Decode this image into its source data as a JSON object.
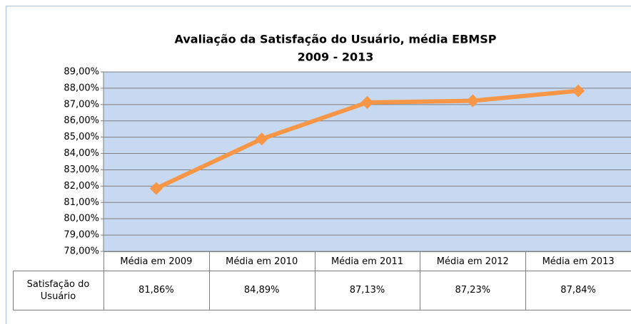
{
  "chart_data": {
    "type": "line",
    "title": "Avaliação da Satisfação do Usuário, média EBMSP",
    "subtitle": "2009 - 2013",
    "categories": [
      "Média em 2009",
      "Média em 2010",
      "Média em 2011",
      "Média em 2012",
      "Média em 2013"
    ],
    "series": [
      {
        "name": "Satisfação do Usuário",
        "color": "#f79646",
        "values": [
          81.86,
          84.89,
          87.13,
          87.23,
          87.84
        ],
        "value_labels": [
          "81,86%",
          "84,89%",
          "87,13%",
          "87,23%",
          "87,84%"
        ]
      }
    ],
    "ylim": [
      78,
      89
    ],
    "yticks": [
      {
        "value": 78,
        "label": "78,00%"
      },
      {
        "value": 79,
        "label": "79,00%"
      },
      {
        "value": 80,
        "label": "80,00%"
      },
      {
        "value": 81,
        "label": "81,00%"
      },
      {
        "value": 82,
        "label": "82,00%"
      },
      {
        "value": 83,
        "label": "83,00%"
      },
      {
        "value": 84,
        "label": "84,00%"
      },
      {
        "value": 85,
        "label": "85,00%"
      },
      {
        "value": 86,
        "label": "86,00%"
      },
      {
        "value": 87,
        "label": "87,00%"
      },
      {
        "value": 88,
        "label": "88,00%"
      },
      {
        "value": 89,
        "label": "89,00%"
      }
    ],
    "grid": true,
    "plot_background": "#c6d9f1"
  }
}
